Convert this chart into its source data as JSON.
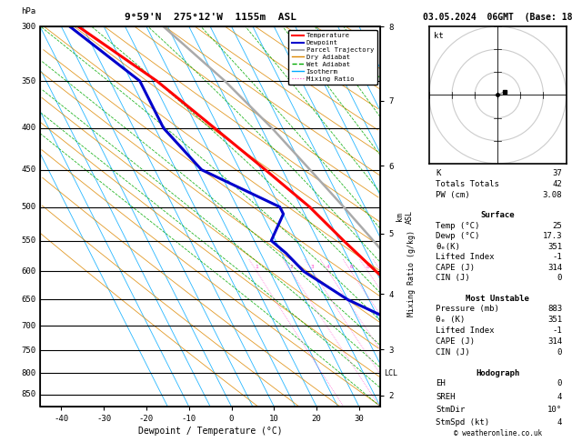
{
  "title_left": "9°59'N  275°12'W  1155m  ASL",
  "title_right": "03.05.2024  06GMT  (Base: 18)",
  "xlabel": "Dewpoint / Temperature (°C)",
  "pressure_min": 300,
  "pressure_max": 880,
  "temp_min": -45,
  "temp_max": 35,
  "skew": 45,
  "temp_profile": {
    "pressure": [
      883,
      850,
      800,
      750,
      700,
      650,
      600,
      550,
      500,
      450,
      400,
      350,
      300
    ],
    "temp": [
      25,
      22,
      19,
      16,
      13,
      9,
      5,
      1,
      -3,
      -9,
      -16,
      -24,
      -36
    ]
  },
  "dewp_profile": {
    "pressure": [
      883,
      850,
      800,
      750,
      700,
      650,
      600,
      570,
      550,
      510,
      500,
      450,
      400,
      350,
      300
    ],
    "dewp": [
      17.3,
      15,
      12,
      8,
      5,
      -5,
      -12,
      -14,
      -16,
      -10,
      -10,
      -24,
      -28,
      -28,
      -38
    ]
  },
  "parcel_profile": {
    "pressure": [
      883,
      850,
      800,
      750,
      700,
      650,
      600,
      550,
      500,
      450,
      400,
      350,
      300
    ],
    "temp": [
      25,
      22.5,
      20,
      17.5,
      15.5,
      13,
      10.5,
      8,
      5,
      1.5,
      -2.5,
      -8,
      -16
    ]
  },
  "lcl_pressure": 800,
  "mixing_ratio_values": [
    1,
    2,
    3,
    4,
    6,
    8,
    10,
    15,
    20,
    25
  ],
  "stats": {
    "K": 37,
    "Totals_Totals": 42,
    "PW_cm": 3.08,
    "Surface_Temp": 25,
    "Surface_Dewp": 17.3,
    "Surface_theta_e": 351,
    "Surface_LI": -1,
    "Surface_CAPE": 314,
    "Surface_CIN": 0,
    "MU_Pressure": 883,
    "MU_theta_e": 351,
    "MU_LI": -1,
    "MU_CAPE": 314,
    "MU_CIN": 0,
    "Hodo_EH": 0,
    "Hodo_SREH": 4,
    "Hodo_StmDir": "10°",
    "Hodo_StmSpd": 4
  },
  "colors": {
    "temp": "#ff0000",
    "dewp": "#0000cc",
    "parcel": "#aaaaaa",
    "dry_adiabat": "#dd8800",
    "wet_adiabat": "#00aa00",
    "isotherm": "#00aaff",
    "mixing_ratio": "#ff44cc",
    "border": "#000000"
  },
  "km_ticks": {
    "pressures": [
      850,
      737,
      620,
      514,
      416,
      340,
      270
    ],
    "labels": [
      "2",
      "3",
      "4",
      "5",
      "6",
      "7",
      "8"
    ]
  },
  "font_family": "monospace"
}
